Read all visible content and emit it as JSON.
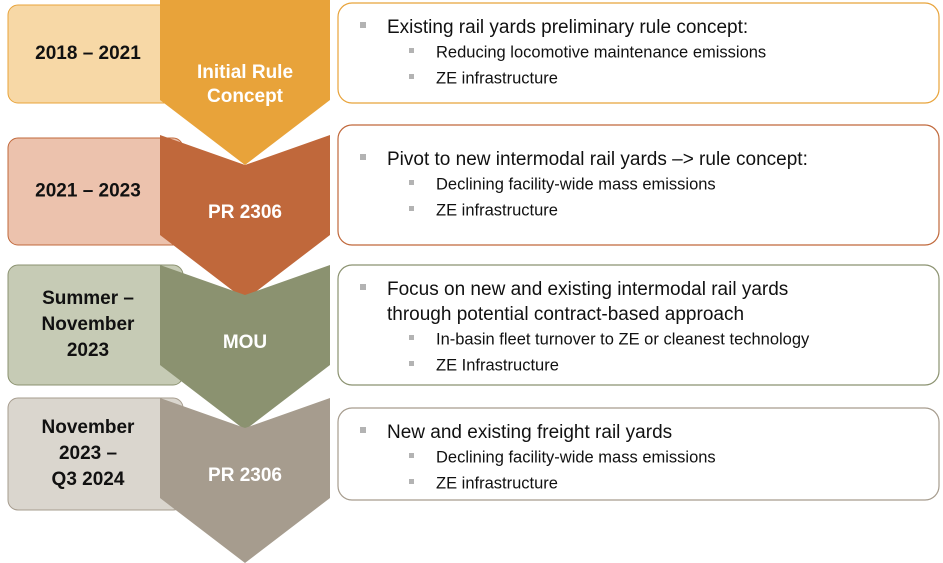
{
  "stages": [
    {
      "period": [
        "2018 – 2021"
      ],
      "label": [
        "Initial Rule",
        "Concept"
      ],
      "bullets": [
        {
          "text": [
            "Existing rail yards preliminary rule concept:"
          ],
          "subs": [
            "Reducing locomotive maintenance emissions",
            "ZE infrastructure"
          ]
        }
      ]
    },
    {
      "period": [
        "2021 – 2023"
      ],
      "label": [
        "PR 2306"
      ],
      "bullets": [
        {
          "text": [
            "Pivot to new intermodal rail yards –> rule concept:"
          ],
          "subs": [
            "Declining facility-wide mass emissions",
            "ZE infrastructure"
          ]
        }
      ]
    },
    {
      "period": [
        "Summer –",
        "November",
        "2023"
      ],
      "label": [
        "MOU"
      ],
      "bullets": [
        {
          "text": [
            "Focus on new and existing intermodal rail yards",
            "through potential contract-based approach"
          ],
          "subs": [
            "In-basin fleet turnover to ZE or cleanest technology",
            "ZE Infrastructure"
          ]
        }
      ]
    },
    {
      "period": [
        "November",
        "2023 –",
        "Q3 2024"
      ],
      "label": [
        "PR 2306"
      ],
      "bullets": [
        {
          "text": [
            "New and existing freight rail yards"
          ],
          "subs": [
            "Declining facility-wide mass emissions",
            "ZE infrastructure"
          ]
        }
      ]
    }
  ]
}
